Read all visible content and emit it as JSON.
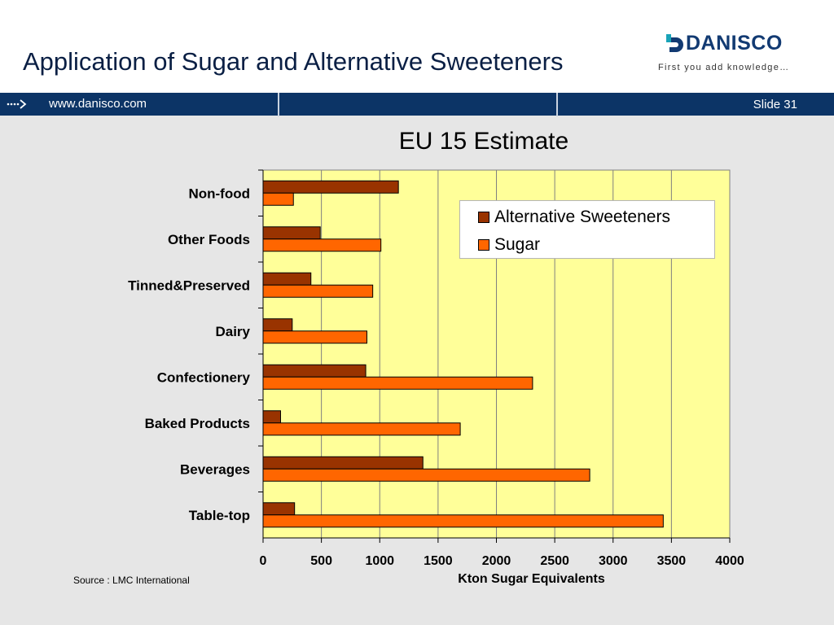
{
  "slide": {
    "title": "Application of Sugar and Alternative Sweeteners",
    "slide_number": "Slide 31",
    "url": "www.danisco.com",
    "source": "Source : LMC International"
  },
  "logo": {
    "name": "DANISCO",
    "tagline": "First you add knowledge…"
  },
  "colors": {
    "navbar": "#0c3466",
    "plot_background": "#ffff99",
    "alternative_sweeteners": "#993300",
    "sugar": "#ff6600"
  },
  "chart_data": {
    "type": "bar",
    "orientation": "horizontal",
    "title": "EU 15 Estimate",
    "xlabel": "Kton Sugar Equivalents",
    "ylabel": "",
    "xlim": [
      0,
      4000
    ],
    "xticks": [
      0,
      500,
      1000,
      1500,
      2000,
      2500,
      3000,
      3500,
      4000
    ],
    "grid": "vertical",
    "legend_position": "top-right",
    "categories": [
      "Non-food",
      "Other Foods",
      "Tinned&Preserved",
      "Dairy",
      "Confectionery",
      "Baked Products",
      "Beverages",
      "Table-top"
    ],
    "series": [
      {
        "name": "Alternative Sweeteners",
        "color": "#993300",
        "values": [
          1160,
          490,
          410,
          250,
          880,
          150,
          1370,
          270
        ]
      },
      {
        "name": "Sugar",
        "color": "#ff6600",
        "values": [
          260,
          1010,
          940,
          890,
          2310,
          1690,
          2800,
          3430
        ]
      }
    ]
  }
}
